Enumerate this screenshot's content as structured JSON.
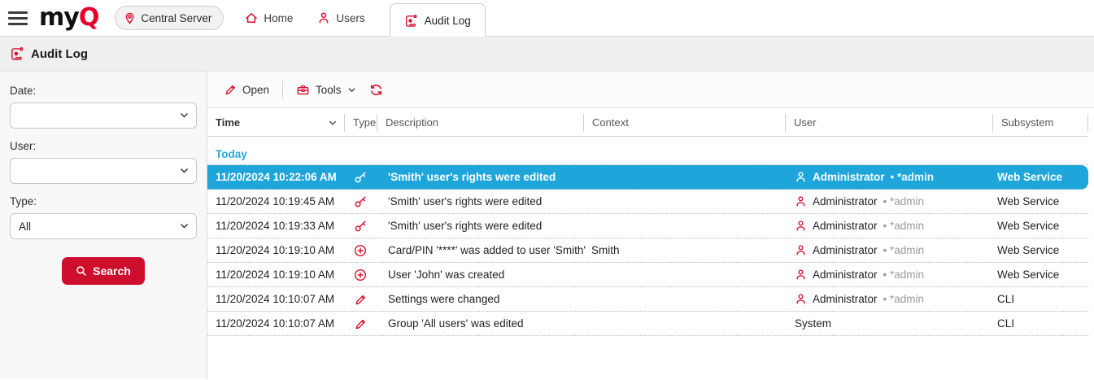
{
  "topbar": {
    "logo_part1": "my",
    "logo_part2": "Q",
    "server_button_label": "Central Server",
    "nav": [
      {
        "label": "Home",
        "icon": "home-icon"
      },
      {
        "label": "Users",
        "icon": "user-icon"
      },
      {
        "label": "Audit Log",
        "icon": "audit-log-icon",
        "active": true
      }
    ]
  },
  "page_header": {
    "title": "Audit Log",
    "icon": "audit-log-icon"
  },
  "sidebar": {
    "filters": [
      {
        "label": "Date:",
        "value": ""
      },
      {
        "label": "User:",
        "value": ""
      },
      {
        "label": "Type:",
        "value": "All"
      }
    ],
    "search_label": "Search"
  },
  "toolbar": {
    "open_label": "Open",
    "tools_label": "Tools",
    "icons": [
      "pencil-icon",
      "toolbox-icon",
      "chevron-down-icon",
      "refresh-icon"
    ]
  },
  "table": {
    "columns": [
      "Time",
      "Type",
      "Description",
      "Context",
      "User",
      "Subsystem"
    ],
    "group_label": "Today",
    "rows": [
      {
        "time": "11/20/2024 10:22:06 AM",
        "type_icon": "key-icon",
        "description": "'Smith' user's rights were edited",
        "context": "",
        "user": "Administrator",
        "user_suffix": "• *admin",
        "user_icon": true,
        "subsystem": "Web Service",
        "selected": true
      },
      {
        "time": "11/20/2024 10:19:45 AM",
        "type_icon": "key-icon",
        "description": "'Smith' user's rights were edited",
        "context": "",
        "user": "Administrator",
        "user_suffix": "• *admin",
        "user_icon": true,
        "subsystem": "Web Service",
        "selected": false
      },
      {
        "time": "11/20/2024 10:19:33 AM",
        "type_icon": "key-icon",
        "description": "'Smith' user's rights were edited",
        "context": "",
        "user": "Administrator",
        "user_suffix": "• *admin",
        "user_icon": true,
        "subsystem": "Web Service",
        "selected": false
      },
      {
        "time": "11/20/2024 10:19:10 AM",
        "type_icon": "add-icon",
        "description": "Card/PIN '****' was added to user 'Smith'",
        "context": "Smith",
        "user": "Administrator",
        "user_suffix": "• *admin",
        "user_icon": true,
        "subsystem": "Web Service",
        "selected": false
      },
      {
        "time": "11/20/2024 10:19:10 AM",
        "type_icon": "add-icon",
        "description": "User 'John' was created",
        "context": "",
        "user": "Administrator",
        "user_suffix": "• *admin",
        "user_icon": true,
        "subsystem": "Web Service",
        "selected": false
      },
      {
        "time": "11/20/2024 10:10:07 AM",
        "type_icon": "edit-icon",
        "description": "Settings were changed",
        "context": "",
        "user": "Administrator",
        "user_suffix": "• *admin",
        "user_icon": true,
        "subsystem": "CLI",
        "selected": false
      },
      {
        "time": "11/20/2024 10:10:07 AM",
        "type_icon": "edit-icon",
        "description": "Group 'All users' was edited",
        "context": "",
        "user": "System",
        "user_suffix": "",
        "user_icon": false,
        "subsystem": "CLI",
        "selected": false
      }
    ]
  },
  "colors": {
    "brand_red": "#e4002b",
    "icon_red": "#d8102f",
    "button_red": "#ce0e2d",
    "selection_blue": "#1ea6db",
    "group_blue": "#29a9dc",
    "header_gray": "#efefef"
  }
}
